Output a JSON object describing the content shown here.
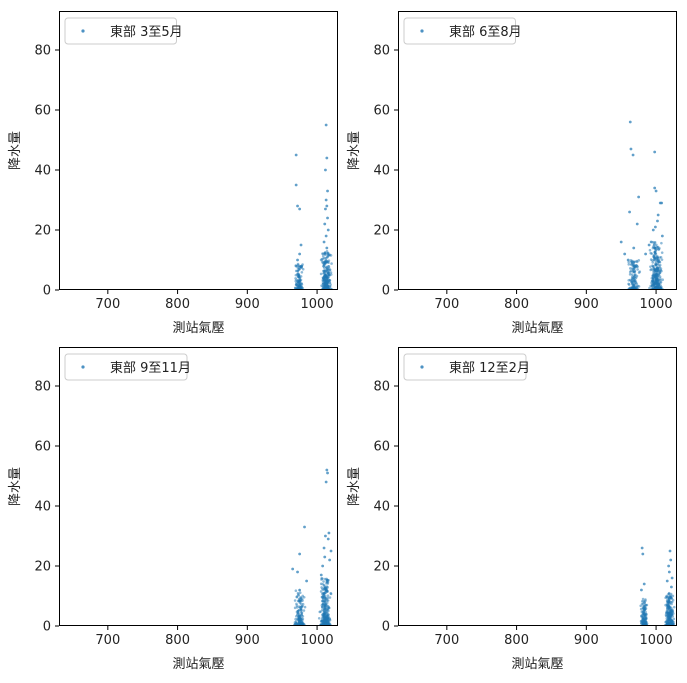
{
  "figure": {
    "point_color": "#1f77b4",
    "point_alpha": 0.5
  },
  "chart_data": [
    {
      "type": "scatter",
      "title": "",
      "xlabel": "測站氣壓",
      "ylabel": "降水量",
      "xlim": [
        630,
        1030
      ],
      "ylim": [
        0,
        93
      ],
      "xticks": [
        700,
        800,
        900,
        1000
      ],
      "yticks": [
        0,
        20,
        40,
        60,
        80
      ],
      "legend_position": "top-left",
      "series": [
        {
          "name": "東部 3至5月",
          "points": [
            [
              970,
              45
            ],
            [
              970,
              35
            ],
            [
              972,
              28
            ],
            [
              975,
              27
            ],
            [
              977,
              15
            ],
            [
              1013,
              55
            ],
            [
              1014,
              44
            ],
            [
              1012,
              40
            ],
            [
              1015,
              33
            ],
            [
              1013,
              30
            ],
            [
              1014,
              28
            ],
            [
              1012,
              27
            ],
            [
              1015,
              24
            ],
            [
              1011,
              22
            ],
            [
              1016,
              20
            ],
            [
              1013,
              18
            ],
            [
              1010,
              16
            ],
            [
              1014,
              14
            ],
            [
              975,
              12
            ],
            [
              972,
              10
            ],
            [
              978,
              8
            ]
          ],
          "clusters": [
            {
              "center": 974,
              "spread": 7,
              "max": 9,
              "count": 140
            },
            {
              "center": 1013,
              "spread": 9,
              "max": 13,
              "count": 300
            }
          ]
        }
      ]
    },
    {
      "type": "scatter",
      "title": "",
      "xlabel": "測站氣壓",
      "ylabel": "降水量",
      "xlim": [
        630,
        1030
      ],
      "ylim": [
        0,
        93
      ],
      "xticks": [
        700,
        800,
        900,
        1000
      ],
      "yticks": [
        0,
        20,
        40,
        60,
        80
      ],
      "legend_position": "top-left",
      "series": [
        {
          "name": "東部 6至8月",
          "points": [
            [
              963,
              56
            ],
            [
              964,
              47
            ],
            [
              967,
              45
            ],
            [
              962,
              26
            ],
            [
              975,
              31
            ],
            [
              973,
              22
            ],
            [
              950,
              16
            ],
            [
              955,
              12
            ],
            [
              998,
              46
            ],
            [
              998,
              34
            ],
            [
              1000,
              33
            ],
            [
              1008,
              29
            ],
            [
              1006,
              29
            ],
            [
              1003,
              25
            ],
            [
              1002,
              23
            ],
            [
              996,
              20
            ],
            [
              1009,
              18
            ],
            [
              990,
              15
            ],
            [
              993,
              16
            ],
            [
              999,
              21
            ],
            [
              985,
              12
            ],
            [
              960,
              10
            ],
            [
              968,
              14
            ]
          ],
          "clusters": [
            {
              "center": 968,
              "spread": 10,
              "max": 10,
              "count": 160
            },
            {
              "center": 1000,
              "spread": 11,
              "max": 16,
              "count": 340
            }
          ]
        }
      ]
    },
    {
      "type": "scatter",
      "title": "",
      "xlabel": "測站氣壓",
      "ylabel": "降水量",
      "xlim": [
        630,
        1030
      ],
      "ylim": [
        0,
        93
      ],
      "xticks": [
        700,
        800,
        900,
        1000
      ],
      "yticks": [
        0,
        20,
        40,
        60,
        80
      ],
      "legend_position": "top-left",
      "series": [
        {
          "name": "東部 9至11月",
          "points": [
            [
              1014,
              52
            ],
            [
              1015,
              51
            ],
            [
              1013,
              48
            ],
            [
              982,
              33
            ],
            [
              1017,
              31
            ],
            [
              1012,
              30
            ],
            [
              1016,
              29
            ],
            [
              1010,
              26
            ],
            [
              975,
              24
            ],
            [
              1018,
              22
            ],
            [
              965,
              19
            ],
            [
              972,
              18
            ],
            [
              1008,
              20
            ],
            [
              1006,
              17
            ],
            [
              985,
              15
            ],
            [
              1020,
              25
            ],
            [
              1011,
              23
            ]
          ],
          "clusters": [
            {
              "center": 975,
              "spread": 9,
              "max": 12,
              "count": 170
            },
            {
              "center": 1012,
              "spread": 10,
              "max": 16,
              "count": 340
            }
          ]
        }
      ]
    },
    {
      "type": "scatter",
      "title": "",
      "xlabel": "測站氣壓",
      "ylabel": "降水量",
      "xlim": [
        630,
        1030
      ],
      "ylim": [
        0,
        93
      ],
      "xticks": [
        700,
        800,
        900,
        1000
      ],
      "yticks": [
        0,
        20,
        40,
        60,
        80
      ],
      "legend_position": "top-left",
      "series": [
        {
          "name": "東部 12至2月",
          "points": [
            [
              980,
              26
            ],
            [
              981,
              24
            ],
            [
              1020,
              25
            ],
            [
              1021,
              22
            ],
            [
              1018,
              20
            ],
            [
              1019,
              18
            ],
            [
              1023,
              16
            ],
            [
              983,
              14
            ],
            [
              1016,
              15
            ],
            [
              1022,
              13
            ],
            [
              979,
              12
            ]
          ],
          "clusters": [
            {
              "center": 983,
              "spread": 6,
              "max": 9,
              "count": 150
            },
            {
              "center": 1019,
              "spread": 8,
              "max": 11,
              "count": 300
            }
          ]
        }
      ]
    }
  ]
}
